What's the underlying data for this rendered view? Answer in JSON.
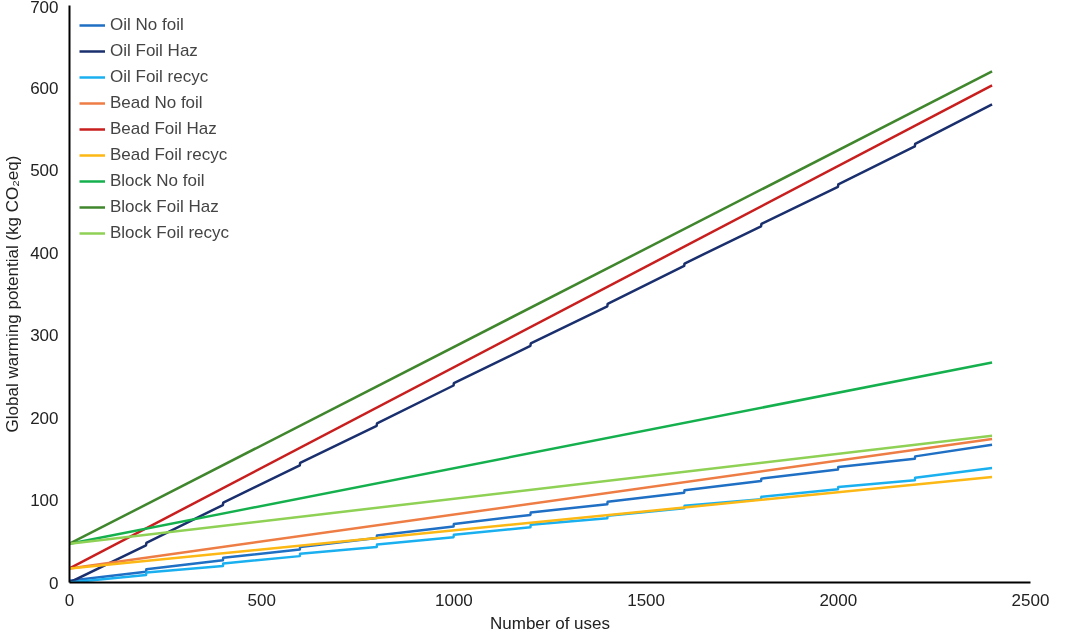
{
  "chart_data": {
    "type": "line",
    "xlabel": "Number of uses",
    "ylabel": "Global warming potential (kg CO₂eq)",
    "xlim": [
      0,
      2500
    ],
    "ylim": [
      0,
      700
    ],
    "xticks": [
      0,
      500,
      1000,
      1500,
      2000,
      2500
    ],
    "yticks": [
      0,
      100,
      200,
      300,
      400,
      500,
      600,
      700
    ],
    "grid": false,
    "legend": "top left",
    "marker": "none",
    "line_style": "solid",
    "series": [
      {
        "name": "Oil No foil",
        "color": "#1f6fc5",
        "x": [
          0,
          199,
          200,
          399,
          400,
          599,
          600,
          799,
          800,
          999,
          1000,
          1199,
          1200,
          1399,
          1400,
          1599,
          1600,
          1799,
          1800,
          1999,
          2000,
          2199,
          2200,
          2400
        ],
        "values": [
          2,
          13,
          16,
          27,
          30,
          40,
          43,
          54,
          57,
          68,
          71,
          82,
          85,
          95,
          98,
          109,
          112,
          123,
          126,
          137,
          140,
          150,
          153,
          167
        ]
      },
      {
        "name": "Oil Foil Haz",
        "color": "#1a2f6e",
        "x": [
          0,
          199,
          200,
          399,
          400,
          599,
          600,
          799,
          800,
          999,
          1000,
          1199,
          1200,
          1399,
          1400,
          1599,
          1600,
          1799,
          1800,
          1999,
          2000,
          2199,
          2200,
          2400
        ],
        "values": [
          0,
          45,
          48,
          94,
          97,
          142,
          145,
          190,
          193,
          239,
          242,
          287,
          290,
          335,
          338,
          384,
          387,
          432,
          435,
          480,
          483,
          529,
          532,
          580
        ]
      },
      {
        "name": "Oil Foil recyc",
        "color": "#1ab0f0",
        "x": [
          0,
          199,
          200,
          399,
          400,
          599,
          600,
          799,
          800,
          999,
          1000,
          1199,
          1200,
          1399,
          1400,
          1599,
          1600,
          1799,
          1800,
          1999,
          2000,
          2199,
          2200,
          2400
        ],
        "values": [
          0,
          9,
          12,
          20,
          23,
          32,
          35,
          43,
          46,
          55,
          58,
          67,
          70,
          78,
          81,
          90,
          93,
          101,
          104,
          113,
          116,
          124,
          127,
          139
        ]
      },
      {
        "name": "Bead No foil",
        "color": "#ee7d45",
        "x": [
          0,
          2400
        ],
        "values": [
          17,
          174
        ]
      },
      {
        "name": "Bead Foil Haz",
        "color": "#c81e1e",
        "x": [
          0,
          2400
        ],
        "values": [
          17,
          603
        ]
      },
      {
        "name": "Bead Foil recyc",
        "color": "#fcb814",
        "x": [
          0,
          2400
        ],
        "values": [
          17,
          128
        ]
      },
      {
        "name": "Block No foil",
        "color": "#15b04e",
        "x": [
          0,
          2400
        ],
        "values": [
          47,
          267
        ]
      },
      {
        "name": "Block Foil Haz",
        "color": "#3f862c",
        "x": [
          0,
          2400
        ],
        "values": [
          47,
          620
        ]
      },
      {
        "name": "Block Foil recyc",
        "color": "#8fd155",
        "x": [
          0,
          2400
        ],
        "values": [
          47,
          178
        ]
      }
    ]
  }
}
